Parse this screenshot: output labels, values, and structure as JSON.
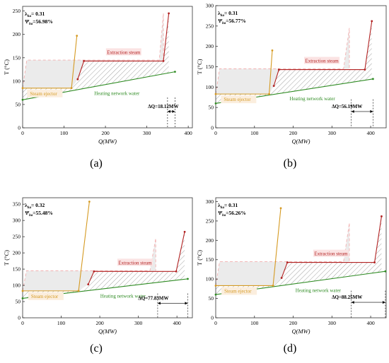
{
  "colors": {
    "extraction": "#b22222",
    "ejector": "#d59a22",
    "network": "#2e8b22",
    "hatch": "#8a8a8a",
    "shade": "#ebebeb",
    "dashed_region": "#f2b0b0",
    "label_bg": "#fbe3e3",
    "ejector_label_bg": "#fbeede",
    "axis": "#333333"
  },
  "chart_data": [
    {
      "type": "line",
      "panel_label": "(a)",
      "xlabel": "Q(MW)",
      "ylabel": "T (°C)",
      "xlim": [
        0,
        410
      ],
      "ylim": [
        0,
        260
      ],
      "xticks": [
        0,
        100,
        200,
        300,
        400
      ],
      "yticks": [
        0,
        50,
        100,
        150,
        200,
        250
      ],
      "lambda_text": "λ",
      "lambda_sub": "ha",
      "lambda_value": "= 0.31",
      "psi_text": "Ψ",
      "psi_sub": "ha",
      "psi_value": "=56.98%",
      "extraction_label": "Extraction steam",
      "ejector_label": "Steam ejector",
      "network_label": "Heating network water",
      "dq_label": "ΔQ=18.12MW",
      "dq_x": [
        350,
        368
      ],
      "dq_y": 35,
      "series": [
        {
          "name": "Extraction steam",
          "x": [
            133,
            148,
            340,
            353
          ],
          "y": [
            104,
            143,
            143,
            245
          ]
        },
        {
          "name": "Steam ejector",
          "x": [
            0,
            118,
            131
          ],
          "y": [
            85,
            85,
            197
          ]
        },
        {
          "name": "Heating network water",
          "x": [
            0,
            368
          ],
          "y": [
            60,
            120
          ]
        }
      ],
      "dashed_region_x": [
        0,
        10,
        330,
        340
      ],
      "dashed_region_top": 145,
      "dashed_peak_y": 245
    },
    {
      "type": "line",
      "panel_label": "(b)",
      "xlabel": "Q(MW)",
      "ylabel": "T (°C)",
      "xlim": [
        0,
        440
      ],
      "ylim": [
        0,
        300
      ],
      "xticks": [
        0,
        100,
        200,
        300,
        400
      ],
      "yticks": [
        0,
        50,
        100,
        150,
        200,
        250,
        300
      ],
      "lambda_text": "λ",
      "lambda_sub": "ha",
      "lambda_value": "= 0.31",
      "psi_text": "Ψ",
      "psi_sub": "ha",
      "psi_value": "=56.77%",
      "extraction_label": "Extraction steam",
      "ejector_label": "Steam ejector",
      "network_label": "Heating network water",
      "dq_label": "ΔQ=56.19MW",
      "dq_x": [
        350,
        406
      ],
      "dq_y": 40,
      "series": [
        {
          "name": "Extraction steam",
          "x": [
            150,
            163,
            385,
            403
          ],
          "y": [
            103,
            143,
            143,
            262
          ]
        },
        {
          "name": "Steam ejector",
          "x": [
            0,
            138,
            146
          ],
          "y": [
            83,
            83,
            190
          ]
        },
        {
          "name": "Heating network water",
          "x": [
            0,
            406
          ],
          "y": [
            60,
            120
          ]
        }
      ],
      "dashed_region_x": [
        0,
        10,
        330,
        345
      ],
      "dashed_region_top": 145,
      "dashed_peak_y": 245
    },
    {
      "type": "line",
      "panel_label": "(c)",
      "xlabel": "Q(MW)",
      "ylabel": "T (°C)",
      "xlim": [
        0,
        440
      ],
      "ylim": [
        0,
        370
      ],
      "xticks": [
        0,
        100,
        200,
        300,
        400
      ],
      "yticks": [
        0,
        50,
        100,
        150,
        200,
        250,
        300,
        350
      ],
      "lambda_text": "λ",
      "lambda_sub": "ha",
      "lambda_value": "= 0.32",
      "psi_text": "Ψ",
      "psi_sub": "ha",
      "psi_value": "=55.48%",
      "extraction_label": "Extraction steam",
      "ejector_label": "Steam ejector",
      "network_label": "Heating network water",
      "dq_label": "ΔQ=77.83MW",
      "dq_x": [
        350,
        428
      ],
      "dq_y": 45,
      "series": [
        {
          "name": "Extraction steam",
          "x": [
            170,
            185,
            398,
            420
          ],
          "y": [
            103,
            143,
            143,
            265
          ]
        },
        {
          "name": "Steam ejector",
          "x": [
            0,
            145,
            173
          ],
          "y": [
            83,
            83,
            358
          ]
        },
        {
          "name": "Heating network water",
          "x": [
            0,
            428
          ],
          "y": [
            60,
            120
          ]
        }
      ],
      "dashed_region_x": [
        0,
        10,
        330,
        345
      ],
      "dashed_region_top": 145,
      "dashed_peak_y": 245
    },
    {
      "type": "line",
      "panel_label": "(d)",
      "xlabel": "Q(MW)",
      "ylabel": "T (°C)",
      "xlim": [
        0,
        440
      ],
      "ylim": [
        0,
        310
      ],
      "xticks": [
        0,
        100,
        200,
        300,
        400
      ],
      "yticks": [
        0,
        50,
        100,
        150,
        200,
        250,
        300
      ],
      "lambda_text": "λ",
      "lambda_sub": "ha",
      "lambda_value": "= 0.31",
      "psi_text": "Ψ",
      "psi_sub": "ha",
      "psi_value": "=56.26%",
      "extraction_label": "Extraction steam",
      "ejector_label": "Steam ejector",
      "network_label": "Heating network water",
      "dq_label": "ΔQ=88.25MW",
      "dq_x": [
        350,
        438
      ],
      "dq_y": 40,
      "series": [
        {
          "name": "Extraction steam",
          "x": [
            170,
            185,
            410,
            428
          ],
          "y": [
            103,
            143,
            143,
            262
          ]
        },
        {
          "name": "Steam ejector",
          "x": [
            0,
            148,
            168
          ],
          "y": [
            83,
            83,
            283
          ]
        },
        {
          "name": "Heating network water",
          "x": [
            0,
            438
          ],
          "y": [
            60,
            120
          ]
        }
      ],
      "dashed_region_x": [
        0,
        10,
        330,
        345
      ],
      "dashed_region_top": 145,
      "dashed_peak_y": 245
    }
  ]
}
